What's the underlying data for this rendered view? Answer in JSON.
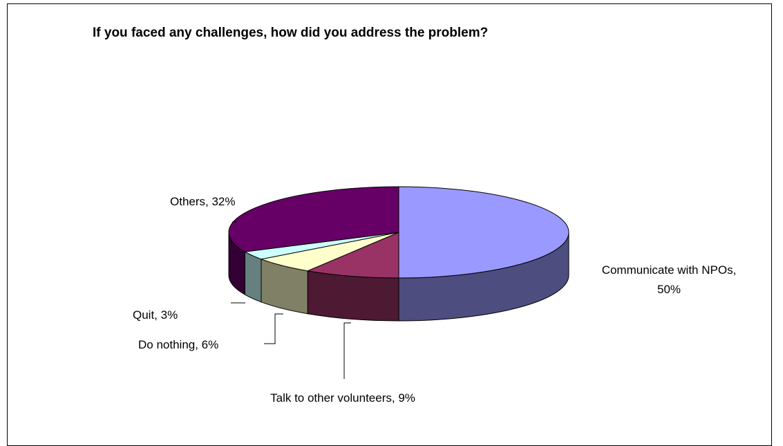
{
  "chart_data": {
    "type": "pie",
    "title": "If you faced any challenges, how did you address the problem?",
    "slices": [
      {
        "label": "Communicate with NPOs",
        "value": 50,
        "display": "50%",
        "top_color": "#9999ff",
        "side_color": "#4d4d80"
      },
      {
        "label": "Talk to other volunteers",
        "value": 9,
        "display": "9%",
        "top_color": "#993366",
        "side_color": "#4d1933"
      },
      {
        "label": "Do nothing",
        "value": 6,
        "display": "6%",
        "top_color": "#ffffcc",
        "side_color": "#808066"
      },
      {
        "label": "Quit",
        "value": 3,
        "display": "3%",
        "top_color": "#ccffff",
        "side_color": "#668080"
      },
      {
        "label": "Others",
        "value": 32,
        "display": "32%",
        "top_color": "#660066",
        "side_color": "#330033"
      }
    ],
    "data_labels": [
      {
        "line1": "Communicate with NPOs,",
        "line2": "50%"
      },
      {
        "line1": "Talk to other volunteers, 9%"
      },
      {
        "line1": "Do nothing, 6%"
      },
      {
        "line1": "Quit, 3%"
      },
      {
        "line1": "Others, 32%"
      }
    ],
    "legend": "none"
  }
}
